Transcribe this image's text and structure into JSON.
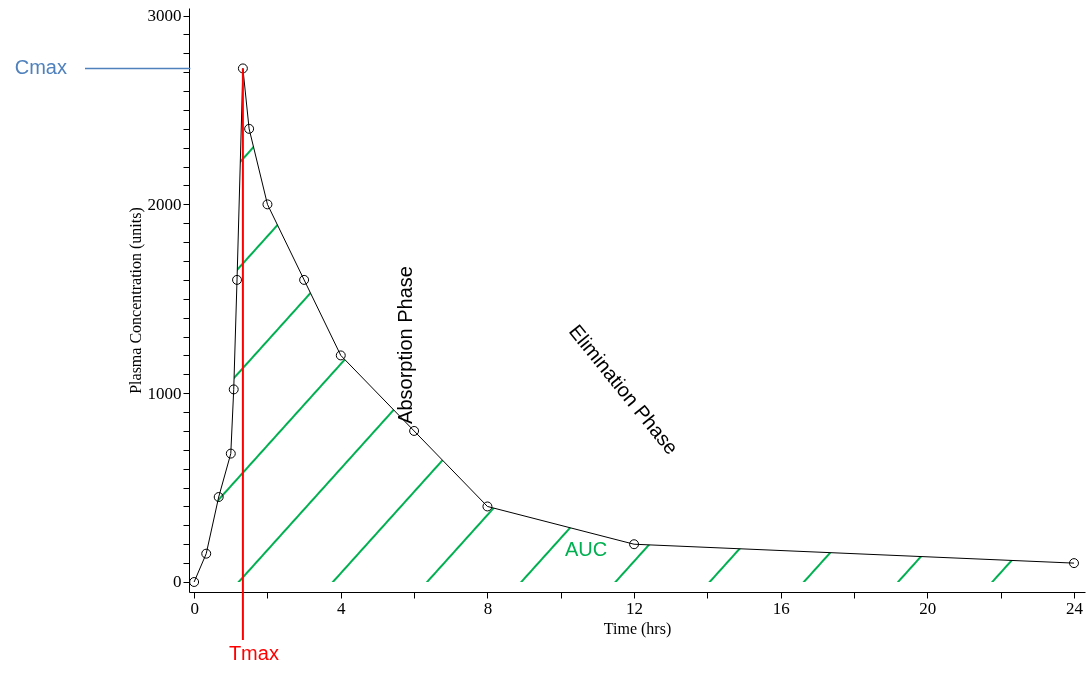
{
  "chart_data": {
    "type": "area",
    "xlabel": "Time (hrs)",
    "ylabel": "Plasma Concentration (units)",
    "x": [
      0,
      0.33,
      0.67,
      1,
      1.08,
      1.17,
      1.33,
      1.5,
      2,
      3,
      4,
      6,
      8,
      12,
      24
    ],
    "series": [
      {
        "name": "AUC",
        "color": "#00b050",
        "values": [
          0,
          150,
          450,
          680,
          1020,
          1600,
          2720,
          2400,
          2000,
          1600,
          1200,
          800,
          400,
          200,
          100
        ]
      }
    ],
    "xlim": [
      -0.14,
      24.3
    ],
    "ylim": [
      -53,
      3040
    ],
    "xticks": [
      0,
      {
        "value": 2,
        "label": null
      },
      4,
      {
        "value": 6,
        "label": null
      },
      8,
      {
        "value": 10,
        "label": null
      },
      12,
      {
        "value": 14,
        "label": null
      },
      16,
      {
        "value": 18,
        "label": null
      },
      20,
      {
        "value": 22,
        "label": null
      },
      24
    ],
    "yticks": [
      0,
      {
        "value": 100,
        "label": null
      },
      {
        "value": 200,
        "label": null
      },
      {
        "value": 300,
        "label": null
      },
      {
        "value": 400,
        "label": null
      },
      {
        "value": 500,
        "label": null
      },
      {
        "value": 600,
        "label": null
      },
      {
        "value": 700,
        "label": null
      },
      {
        "value": 800,
        "label": null
      },
      {
        "value": 900,
        "label": null
      },
      1000,
      {
        "value": 1100,
        "label": null
      },
      {
        "value": 1200,
        "label": null
      },
      {
        "value": 1300,
        "label": null
      },
      {
        "value": 1400,
        "label": null
      },
      {
        "value": 1500,
        "label": null
      },
      {
        "value": 1600,
        "label": null
      },
      {
        "value": 1700,
        "label": null
      },
      {
        "value": 1800,
        "label": null
      },
      {
        "value": 1900,
        "label": null
      },
      2000,
      {
        "value": 2100,
        "label": null
      },
      {
        "value": 2200,
        "label": null
      },
      {
        "value": 2300,
        "label": null
      },
      {
        "value": 2400,
        "label": null
      },
      {
        "value": 2500,
        "label": null
      },
      {
        "value": 2600,
        "label": null
      },
      {
        "value": 2700,
        "label": null
      },
      {
        "value": 2800,
        "label": null
      },
      {
        "value": 2900,
        "label": null
      },
      3000
    ],
    "ref_lines": [
      {
        "axis": "y",
        "value": 2720,
        "label": "Cmax",
        "color": "#4f81bd"
      },
      {
        "axis": "x",
        "value": 1.33,
        "label": "Tmax",
        "color": "#ff0000"
      }
    ],
    "annotations": [
      "Absorption Phase",
      "Elimination Phase"
    ],
    "marker": "circle",
    "grid": false
  }
}
